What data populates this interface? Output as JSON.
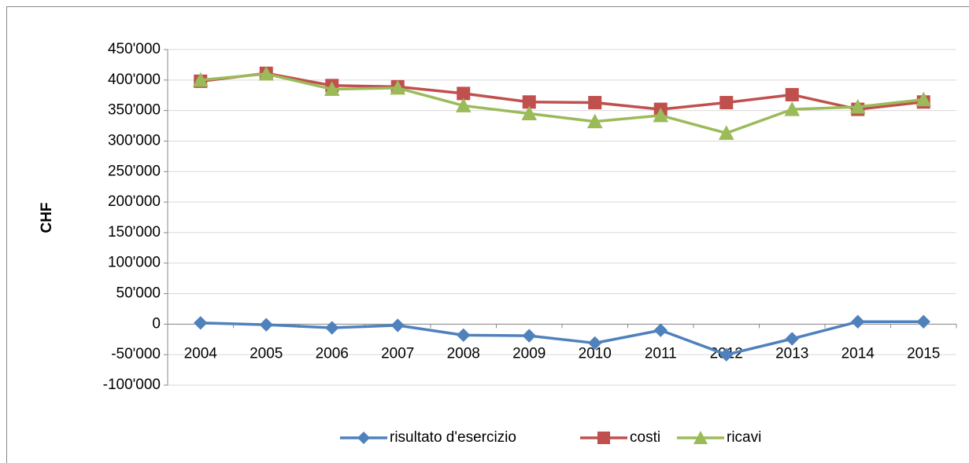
{
  "chart_data": {
    "type": "line",
    "y_label": "CHF",
    "categories": [
      "2004",
      "2005",
      "2006",
      "2007",
      "2008",
      "2009",
      "2010",
      "2011",
      "2012",
      "2013",
      "2014",
      "2015"
    ],
    "series": [
      {
        "name": "risultato d'esercizio",
        "color": "#4f81bd",
        "marker": "diamond",
        "values": [
          2000,
          -1000,
          -6000,
          -2000,
          -18000,
          -19000,
          -31000,
          -10000,
          -50000,
          -24000,
          4000,
          4000
        ]
      },
      {
        "name": "costi",
        "color": "#c0504d",
        "marker": "square",
        "values": [
          398000,
          411000,
          391000,
          389000,
          378000,
          364000,
          363000,
          352000,
          363000,
          376000,
          352000,
          364000
        ]
      },
      {
        "name": "ricavi",
        "color": "#9bbb59",
        "marker": "triangle",
        "values": [
          400000,
          410000,
          385000,
          387000,
          358000,
          345000,
          332000,
          342000,
          313000,
          352000,
          356000,
          368000
        ]
      }
    ],
    "ylim": [
      -100000,
      450000
    ],
    "yticks": [
      {
        "value": -100000,
        "label": "-100'000"
      },
      {
        "value": -50000,
        "label": "-50'000"
      },
      0,
      {
        "value": 50000,
        "label": "50'000"
      },
      {
        "value": 100000,
        "label": "100'000"
      },
      {
        "value": 150000,
        "label": "150'000"
      },
      {
        "value": 200000,
        "label": "200'000"
      },
      {
        "value": 250000,
        "label": "250'000"
      },
      {
        "value": 300000,
        "label": "300'000"
      },
      {
        "value": 350000,
        "label": "350'000"
      },
      {
        "value": 400000,
        "label": "400'000"
      },
      {
        "value": 450000,
        "label": "450'000"
      }
    ],
    "grid": true,
    "legend": "bottom"
  }
}
